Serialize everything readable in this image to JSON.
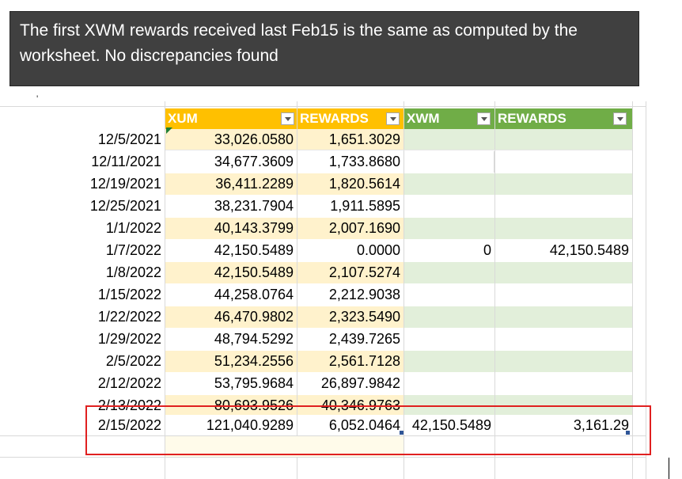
{
  "callout": {
    "text": "The first XWM rewards received last Feb15 is the same as computed by the worksheet.  No discrepancies found"
  },
  "stray_mark": "'",
  "headers": {
    "xum": "XUM",
    "rewards1": "REWARDS",
    "xwm": "XWM",
    "rewards2": "REWARDS"
  },
  "rows": [
    {
      "date": "12/5/2021",
      "xum": "33,026.0580",
      "rewards": "1,651.3029",
      "xwm": "",
      "rewards2": ""
    },
    {
      "date": "12/11/2021",
      "xum": "34,677.3609",
      "rewards": "1,733.8680",
      "xwm": "",
      "rewards2": ""
    },
    {
      "date": "12/19/2021",
      "xum": "36,411.2289",
      "rewards": "1,820.5614",
      "xwm": "",
      "rewards2": ""
    },
    {
      "date": "12/25/2021",
      "xum": "38,231.7904",
      "rewards": "1,911.5895",
      "xwm": "",
      "rewards2": ""
    },
    {
      "date": "1/1/2022",
      "xum": "40,143.3799",
      "rewards": "2,007.1690",
      "xwm": "",
      "rewards2": ""
    },
    {
      "date": "1/7/2022",
      "xum": "42,150.5489",
      "rewards": "0.0000",
      "xwm": "0",
      "rewards2": "42,150.5489"
    },
    {
      "date": "1/8/2022",
      "xum": "42,150.5489",
      "rewards": "2,107.5274",
      "xwm": "",
      "rewards2": ""
    },
    {
      "date": "1/15/2022",
      "xum": "44,258.0764",
      "rewards": "2,212.9038",
      "xwm": "",
      "rewards2": ""
    },
    {
      "date": "1/22/2022",
      "xum": "46,470.9802",
      "rewards": "2,323.5490",
      "xwm": "",
      "rewards2": ""
    },
    {
      "date": "1/29/2022",
      "xum": "48,794.5292",
      "rewards": "2,439.7265",
      "xwm": "",
      "rewards2": ""
    },
    {
      "date": "2/5/2022",
      "xum": "51,234.2556",
      "rewards": "2,561.7128",
      "xwm": "",
      "rewards2": ""
    },
    {
      "date": "2/12/2022",
      "xum": "53,795.9684",
      "rewards": "26,897.9842",
      "xwm": "",
      "rewards2": ""
    },
    {
      "date": "2/13/2022",
      "xum": "80,693.9526",
      "rewards": "40,346.9763",
      "xwm": "",
      "rewards2": ""
    },
    {
      "date": "2/15/2022",
      "xum": "121,040.9289",
      "rewards": "6,052.0464",
      "xwm": "42,150.5489",
      "rewards2": "3,161.29"
    }
  ],
  "colors": {
    "yellow_header": "#ffc000",
    "yellow_band": "#fff2cc",
    "green_header": "#70ad47",
    "green_band": "#e2efda",
    "highlight_box": "#e02020",
    "callout_bg": "#404040"
  }
}
